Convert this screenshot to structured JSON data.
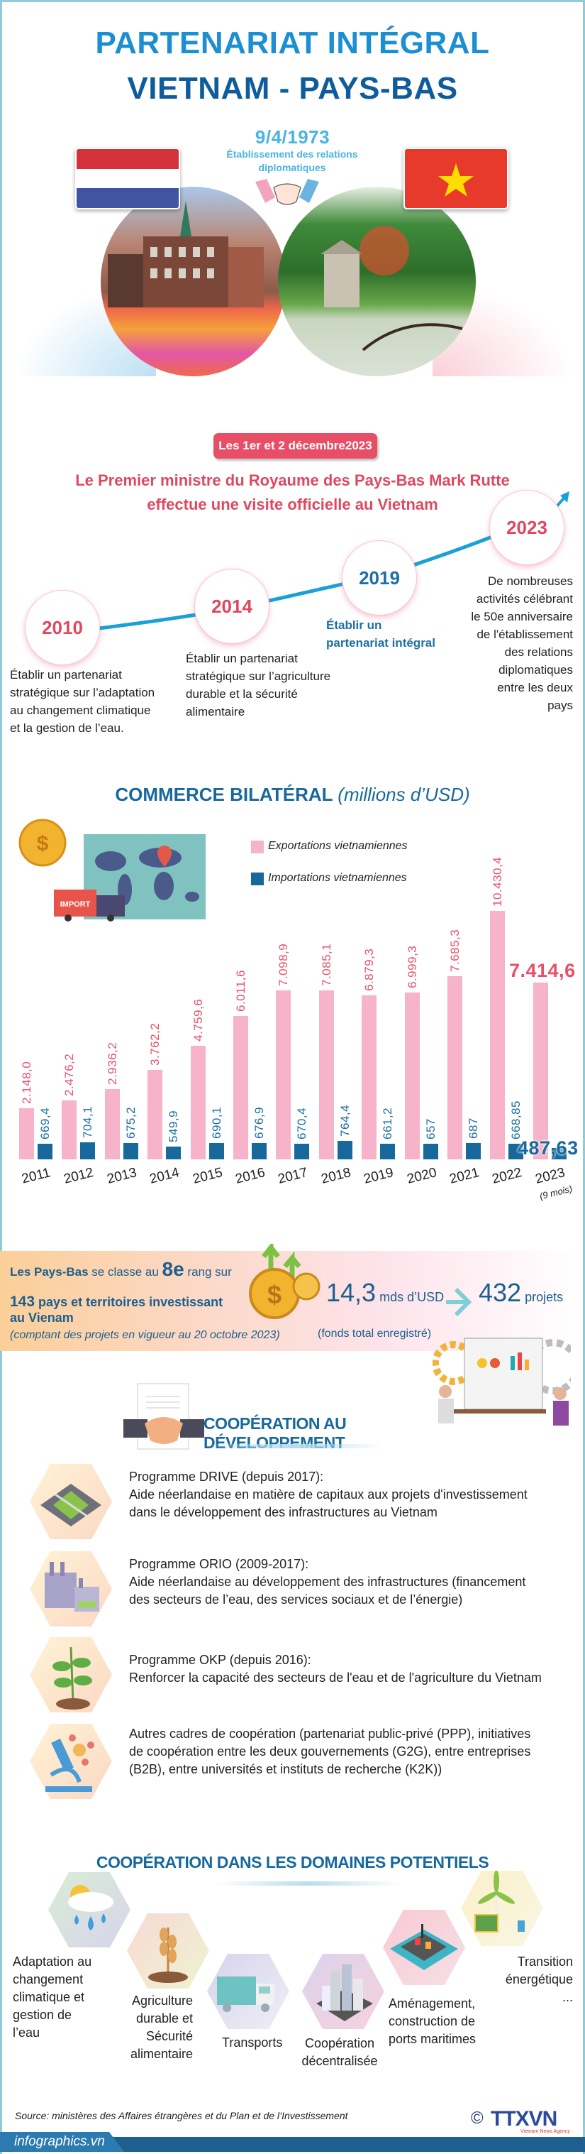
{
  "header": {
    "title_line1": "PARTENARIAT INTÉGRAL",
    "title_line2": "VIETNAM - PAYS-BAS",
    "date": "9/4/1973",
    "date_caption": "Établissement des relations diplomatiques"
  },
  "visit": {
    "date_badge": "Les 1er et 2 décembre2023",
    "headline": "Le Premier ministre du Royaume des Pays-Bas Mark Rutte effectue une visite officielle au Vietnam"
  },
  "timeline": [
    {
      "year": "2010",
      "text": "Établir un partenariat\nstratégique sur l’adaptation\nau changement climatique\net la gestion de l’eau."
    },
    {
      "year": "2014",
      "text": "Établir un partenariat\nstratégique sur l’agriculture\ndurable et la sécurité\nalimentaire"
    },
    {
      "year": "2019",
      "text": "Établir un\npartenariat intégral"
    },
    {
      "year": "2023",
      "text": "De nombreuses\nactivités célébrant\nle 50e anniversaire\nde l'établissement\ndes relations\ndiplomatiques\nentre les deux\npays"
    }
  ],
  "trade": {
    "title": "COMMERCE BILATÉRAL",
    "unit": "(millions d’USD)",
    "illustration_text": "IMPORT"
  },
  "chart_data": {
    "type": "bar",
    "title": "COMMERCE BILATÉRAL (millions d’USD)",
    "categories": [
      "2011",
      "2012",
      "2013",
      "2014",
      "2015",
      "2016",
      "2017",
      "2018",
      "2019",
      "2020",
      "2021",
      "2022",
      "2023"
    ],
    "category_note": {
      "2023": "(9 mois)"
    },
    "series": [
      {
        "name": "Exportations vietnamiennes",
        "color": "#f7b3c9",
        "label_color": "#e8506a",
        "values": [
          2148.0,
          2476.2,
          2936.2,
          3762.2,
          4759.6,
          6011.6,
          7098.9,
          7085.1,
          6879.3,
          6999.3,
          7685.3,
          10430.4,
          7414.6
        ],
        "labels": [
          "2.148,0",
          "2.476,2",
          "2.936,2",
          "3.762,2",
          "4.759,6",
          "6.011,6",
          "7.098,9",
          "7.085,1",
          "6.879,3",
          "6.999,3",
          "7.685,3",
          "10.430,4",
          "7.414,6"
        ]
      },
      {
        "name": "Importations vietnamiennes",
        "color": "#17699c",
        "label_color": "#1a6fa0",
        "values": [
          669.4,
          704.1,
          675.2,
          549.9,
          690.1,
          676.9,
          670.4,
          764.4,
          661.2,
          657,
          687,
          668.85,
          487.63
        ],
        "labels": [
          "669,4",
          "704,1",
          "675,2",
          "549,9",
          "690,1",
          "676,9",
          "670,4",
          "764,4",
          "661,2",
          "657",
          "687",
          "668,85",
          "487,63"
        ]
      }
    ],
    "legend_placement": "top-right",
    "grid": false,
    "ylim": [
      0,
      10430.4
    ]
  },
  "investment": {
    "rank_pre": "Les Pays-Bas",
    "rank_mid": " se classe au ",
    "rank_value": "8e",
    "rank_post": " rang sur",
    "count": "143",
    "count_text": " pays et territoires investissant",
    "count_text2": "au Vienam",
    "note": "(comptant des projets en vigueur au 20 octobre 2023)",
    "capital_value": "14,3",
    "capital_unit": " mds d’USD",
    "capital_caption": "(fonds total enregistré)",
    "projects_value": "432",
    "projects_unit": " projets"
  },
  "development": {
    "title": "COOPÉRATION AU DÉVELOPPEMENT",
    "items": [
      {
        "icon": "city-intersection-icon",
        "title": "Programme DRIVE (depuis 2017):",
        "text": "Aide néerlandaise en matière de capitaux aux projets d'investissement dans le développement des infrastructures au Vietnam"
      },
      {
        "icon": "factory-icon",
        "title": "Programme ORIO (2009-2017):",
        "text": "Aide néerlandaise au développement des infrastructures (financement des secteurs de l’eau, des services sociaux et de l’énergie)"
      },
      {
        "icon": "plant-icon",
        "title": "Programme OKP (depuis 2016):",
        "text": "Renforcer la capacité des secteurs de l'eau et de l'agriculture du Vietnam"
      },
      {
        "icon": "microscope-icon",
        "title": "",
        "text": "Autres cadres de coopération (partenariat public-privé (PPP), initiatives de coopération entre les deux gouvernements (G2G), entre entreprises (B2B), entre universités et instituts de recherche (K2K))"
      }
    ]
  },
  "domains": {
    "title": "COOPÉRATION DANS LES DOMAINES POTENTIELS",
    "items": [
      {
        "icon": "weather-rain-icon",
        "label": "Adaptation au\nchangement\nclimatique et\ngestion de\nl’eau"
      },
      {
        "icon": "wheat-icon",
        "label": "Agriculture\ndurable et\nSécurité\nalimentaire"
      },
      {
        "icon": "truck-icon",
        "label": "Transports"
      },
      {
        "icon": "buildings-icon",
        "label": "Coopération\ndécentralisée"
      },
      {
        "icon": "port-icon",
        "label": "Aménagement,\nconstruction de\nports maritimes"
      },
      {
        "icon": "wind-turbine-icon",
        "label": "Transition\nénergétique\n..."
      }
    ]
  },
  "footer": {
    "source_label": "Source:",
    "source_text": "ministères des Affaires étrangères et du Plan et de l’Investissement",
    "site": "infographics.vn",
    "logo_text": "TTXVN",
    "logo_sub": "Vietnam News Agency",
    "copyright": "©"
  },
  "colors": {
    "title_light": "#1b8fd2",
    "title_dark": "#0f5c9c",
    "accent_red": "#e84f66",
    "export_pink": "#f7b3c9",
    "import_blue": "#17699c",
    "frame": "#8ecbdc"
  }
}
